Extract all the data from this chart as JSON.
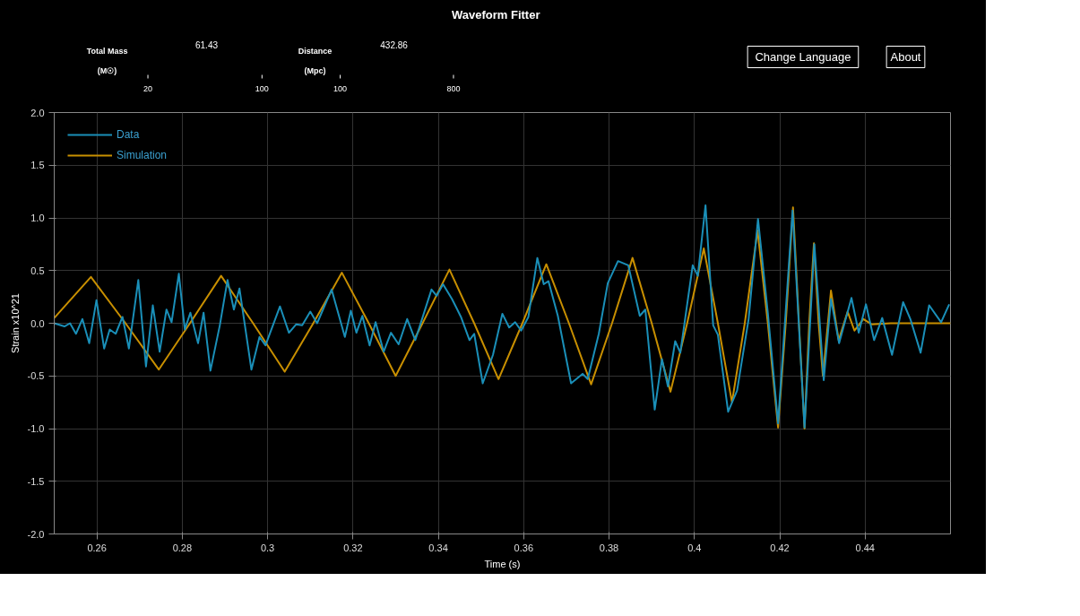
{
  "chart_data": {
    "type": "line",
    "title": "Waveform Fitter",
    "xlabel": "Time (s)",
    "ylabel": "Strain x10^21",
    "annotations": [
      "Total Mass",
      "(M☉)",
      "20",
      "100",
      "61.43",
      "Distance",
      "(Mpc)",
      "100",
      "800",
      "432.86",
      "Change Language",
      "About"
    ],
    "xlim": [
      0.25,
      0.46
    ],
    "ylim": [
      -2.0,
      2.0
    ],
    "xticks": [
      0.26,
      0.28,
      0.3,
      0.32,
      0.34,
      0.36,
      0.38,
      0.4,
      0.42,
      0.44
    ],
    "yticks": [
      {
        "value": -2,
        "label": "-2.0"
      },
      -1.5,
      {
        "value": -1,
        "label": "-1.0"
      },
      -0.5,
      {
        "value": 0,
        "label": "0.0"
      },
      0.5,
      {
        "value": 1,
        "label": "1.0"
      },
      1.5,
      {
        "value": 2,
        "label": "2.0"
      }
    ],
    "grid": true,
    "legend": "top left",
    "line_style": "solid",
    "marker": "none",
    "series": [
      {
        "name": "Data",
        "color": "#1a8fb8",
        "x": [
          0.25,
          0.2524,
          0.2537,
          0.2551,
          0.2566,
          0.2582,
          0.2599,
          0.2617,
          0.263,
          0.2644,
          0.266,
          0.2675,
          0.2697,
          0.2715,
          0.2731,
          0.2747,
          0.2763,
          0.2775,
          0.2792,
          0.2806,
          0.2819,
          0.2837,
          0.285,
          0.2866,
          0.2888,
          0.2906,
          0.2921,
          0.2934,
          0.2962,
          0.2981,
          0.2995,
          0.3029,
          0.305,
          0.3067,
          0.3081,
          0.31,
          0.3116,
          0.315,
          0.3181,
          0.3195,
          0.3208,
          0.3222,
          0.3239,
          0.3253,
          0.3272,
          0.3289,
          0.3307,
          0.3327,
          0.3346,
          0.3384,
          0.3396,
          0.3411,
          0.3432,
          0.3453,
          0.3473,
          0.3484,
          0.3504,
          0.3528,
          0.355,
          0.3566,
          0.358,
          0.3594,
          0.3611,
          0.3632,
          0.3647,
          0.3658,
          0.368,
          0.3711,
          0.3738,
          0.375,
          0.3776,
          0.3797,
          0.3821,
          0.3845,
          0.3872,
          0.3885,
          0.3907,
          0.3924,
          0.3938,
          0.3955,
          0.3967,
          0.3996,
          0.4008,
          0.4026,
          0.4044,
          0.4055,
          0.4079,
          0.41,
          0.4127,
          0.4149,
          0.4172,
          0.4196,
          0.423,
          0.4258,
          0.4281,
          0.4303,
          0.432,
          0.4339,
          0.4368,
          0.4385,
          0.4402,
          0.4421,
          0.444,
          0.4463,
          0.4489,
          0.4506,
          0.453,
          0.455,
          0.4578,
          0.4597
        ],
        "values": [
          0.0,
          -0.03,
          0.0,
          -0.1,
          0.04,
          -0.19,
          0.22,
          -0.24,
          -0.06,
          -0.1,
          0.06,
          -0.24,
          0.41,
          -0.41,
          0.17,
          -0.27,
          0.13,
          0.01,
          0.47,
          -0.06,
          0.1,
          -0.19,
          0.1,
          -0.45,
          -0.02,
          0.41,
          0.13,
          0.33,
          -0.44,
          -0.13,
          -0.21,
          0.16,
          -0.09,
          -0.01,
          -0.02,
          0.11,
          0.0,
          0.32,
          -0.13,
          0.12,
          -0.09,
          0.07,
          -0.21,
          0.01,
          -0.27,
          -0.09,
          -0.2,
          0.04,
          -0.16,
          0.32,
          0.26,
          0.37,
          0.23,
          0.06,
          -0.16,
          -0.1,
          -0.57,
          -0.3,
          0.09,
          -0.04,
          0.01,
          -0.07,
          0.06,
          0.62,
          0.37,
          0.4,
          0.07,
          -0.57,
          -0.48,
          -0.53,
          -0.1,
          0.38,
          0.59,
          0.55,
          0.07,
          0.13,
          -0.82,
          -0.34,
          -0.6,
          -0.17,
          -0.28,
          0.55,
          0.45,
          1.12,
          -0.02,
          -0.11,
          -0.84,
          -0.64,
          0.04,
          0.99,
          0.1,
          -0.95,
          1.07,
          -0.99,
          0.75,
          -0.54,
          0.23,
          -0.19,
          0.24,
          -0.09,
          0.18,
          -0.16,
          0.05,
          -0.3,
          0.2,
          0.04,
          -0.28,
          0.17,
          0.01,
          0.18
        ]
      },
      {
        "name": "Simulation",
        "color": "#c88f00",
        "x": [
          0.25,
          0.2586,
          0.2667,
          0.2745,
          0.2818,
          0.2891,
          0.2966,
          0.304,
          0.3107,
          0.3174,
          0.3237,
          0.33,
          0.3363,
          0.3426,
          0.3484,
          0.3541,
          0.3597,
          0.3653,
          0.3706,
          0.3758,
          0.3807,
          0.3855,
          0.39,
          0.3944,
          0.3983,
          0.4022,
          0.4055,
          0.4088,
          0.4118,
          0.4148,
          0.4172,
          0.4196,
          0.4214,
          0.4231,
          0.4245,
          0.4258,
          0.4269,
          0.428,
          0.4291,
          0.4301,
          0.432,
          0.4338,
          0.4359,
          0.4375,
          0.4396,
          0.4415,
          0.446,
          0.46
        ],
        "values": [
          0.05,
          0.44,
          0.0,
          -0.44,
          0.0,
          0.45,
          0.0,
          -0.46,
          0.0,
          0.48,
          0.0,
          -0.5,
          0.0,
          0.51,
          0.0,
          -0.53,
          0.0,
          0.56,
          0.0,
          -0.58,
          0.0,
          0.62,
          0.0,
          -0.65,
          0.0,
          0.71,
          0.0,
          -0.75,
          0.0,
          0.88,
          0.0,
          -0.99,
          0.0,
          1.1,
          0.0,
          -1.0,
          0.0,
          0.76,
          0.0,
          -0.5,
          0.31,
          -0.16,
          0.11,
          -0.07,
          0.04,
          -0.01,
          0.0,
          0.0
        ]
      }
    ]
  }
}
